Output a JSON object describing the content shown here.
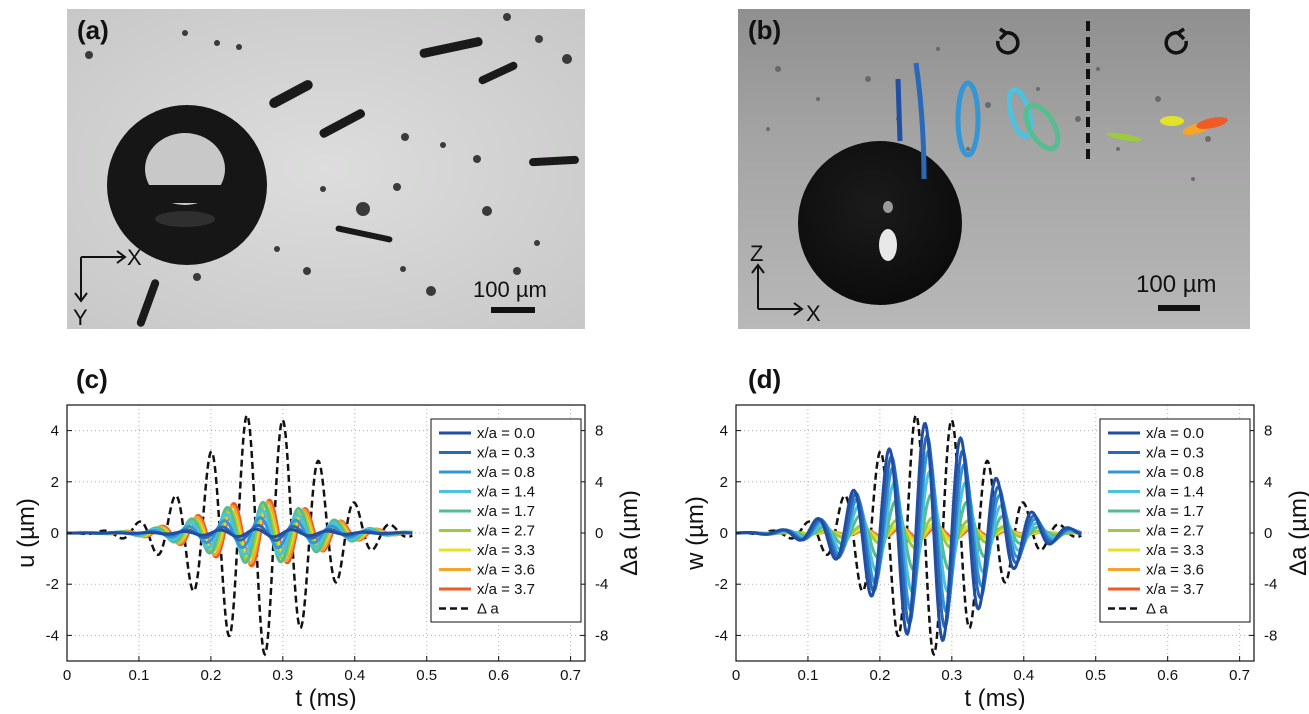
{
  "panels": {
    "a": {
      "label": "(a)",
      "scale_text": "100 µm",
      "axis_x": "X",
      "axis_y": "Y"
    },
    "b": {
      "label": "(b)",
      "scale_text": "100 µm",
      "axis_x": "X",
      "axis_z": "Z",
      "rotation_left_icon": "counterclockwise-arrow",
      "rotation_right_icon": "clockwise-arrow"
    },
    "c": {
      "label": "(c)"
    },
    "d": {
      "label": "(d)"
    }
  },
  "colors": {
    "x00": "#1f4ea3",
    "x03": "#2b69b8",
    "x08": "#3596d6",
    "x14": "#4cc2e0",
    "x17": "#55bd8f",
    "x27": "#9ccc3a",
    "x33": "#e3e22a",
    "x36": "#f4a52a",
    "x37": "#ef5a25",
    "delta": "#111111"
  },
  "chart_data": [
    {
      "type": "line",
      "panel": "(c)",
      "xlabel": "t (ms)",
      "ylabel": "u (µm)",
      "y2label": "Δa (µm)",
      "xlim": [
        0,
        0.72
      ],
      "ylim": [
        -5,
        5
      ],
      "y2lim": [
        -10,
        10
      ],
      "xticks": [
        "0",
        "0.1",
        "0.2",
        "0.3",
        "0.4",
        "0.5",
        "0.6",
        "0.7"
      ],
      "yticks": [
        "-4",
        "-2",
        "0",
        "2",
        "4"
      ],
      "y2ticks": [
        "-8",
        "-4",
        "0",
        "4",
        "8"
      ],
      "grid": true,
      "legend_position": "top-right",
      "wave": {
        "t_start": 0.0,
        "t_end": 0.48,
        "period_ms": 0.05,
        "center_ms": 0.27,
        "width_ms": 0.11
      },
      "delta_a_amplitude": 9.5,
      "series": [
        {
          "name": "x/a = 0.0",
          "amplitude": 0.15,
          "phase_ms": 0.0,
          "color_key": "x00"
        },
        {
          "name": "x/a = 0.3",
          "amplitude": 0.3,
          "phase_ms": 0.003,
          "color_key": "x03"
        },
        {
          "name": "x/a = 0.8",
          "amplitude": 0.6,
          "phase_ms": 0.006,
          "color_key": "x08"
        },
        {
          "name": "x/a = 1.4",
          "amplitude": 0.9,
          "phase_ms": 0.008,
          "color_key": "x14"
        },
        {
          "name": "x/a = 1.7",
          "amplitude": 1.2,
          "phase_ms": 0.01,
          "color_key": "x17"
        },
        {
          "name": "x/a = 2.7",
          "amplitude": 1.1,
          "phase_ms": 0.013,
          "color_key": "x27"
        },
        {
          "name": "x/a = 3.3",
          "amplitude": 1.0,
          "phase_ms": 0.015,
          "color_key": "x33"
        },
        {
          "name": "x/a = 3.6",
          "amplitude": 1.2,
          "phase_ms": 0.017,
          "color_key": "x36"
        },
        {
          "name": "x/a = 3.7",
          "amplitude": 1.3,
          "phase_ms": 0.019,
          "color_key": "x37"
        },
        {
          "name": "Δ a",
          "dashed": true,
          "color_key": "delta"
        }
      ]
    },
    {
      "type": "line",
      "panel": "(d)",
      "xlabel": "t (ms)",
      "ylabel": "w (µm)",
      "y2label": "Δa (µm)",
      "xlim": [
        0,
        0.72
      ],
      "ylim": [
        -5,
        5
      ],
      "y2lim": [
        -10,
        10
      ],
      "xticks": [
        "0",
        "0.1",
        "0.2",
        "0.3",
        "0.4",
        "0.5",
        "0.6",
        "0.7"
      ],
      "yticks": [
        "-4",
        "-2",
        "0",
        "2",
        "4"
      ],
      "y2ticks": [
        "-8",
        "-4",
        "0",
        "4",
        "8"
      ],
      "grid": true,
      "legend_position": "top-right",
      "wave": {
        "t_start": 0.0,
        "t_end": 0.48,
        "period_ms": 0.05,
        "center_ms": 0.27,
        "width_ms": 0.11
      },
      "delta_a_amplitude": 9.5,
      "series": [
        {
          "name": "x/a = 0.0",
          "amplitude": 4.3,
          "phase_ms": 0.0,
          "color_key": "x00"
        },
        {
          "name": "x/a = 0.3",
          "amplitude": 3.8,
          "phase_ms": 0.003,
          "color_key": "x03"
        },
        {
          "name": "x/a = 0.8",
          "amplitude": 3.2,
          "phase_ms": 0.005,
          "color_key": "x08"
        },
        {
          "name": "x/a = 1.4",
          "amplitude": 2.4,
          "phase_ms": 0.007,
          "color_key": "x14"
        },
        {
          "name": "x/a = 1.7",
          "amplitude": 1.5,
          "phase_ms": 0.009,
          "color_key": "x17"
        },
        {
          "name": "x/a = 2.7",
          "amplitude": 0.6,
          "phase_ms": 0.011,
          "color_key": "x27"
        },
        {
          "name": "x/a = 3.3",
          "amplitude": 0.35,
          "phase_ms": 0.013,
          "color_key": "x33"
        },
        {
          "name": "x/a = 3.6",
          "amplitude": 0.3,
          "phase_ms": 0.015,
          "color_key": "x36"
        },
        {
          "name": "x/a = 3.7",
          "amplitude": 0.25,
          "phase_ms": 0.017,
          "color_key": "x37"
        },
        {
          "name": "Δ a",
          "dashed": true,
          "color_key": "delta"
        }
      ]
    }
  ]
}
